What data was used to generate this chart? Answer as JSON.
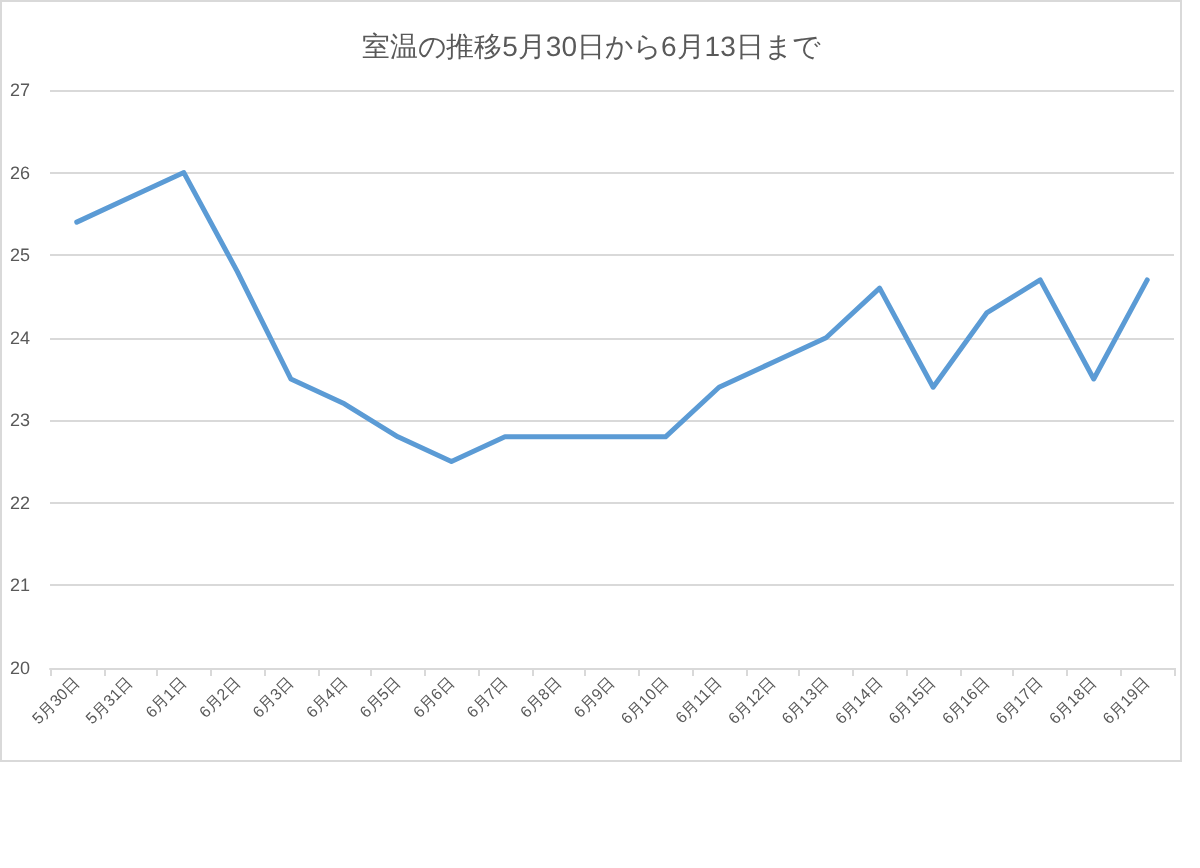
{
  "chart_data": {
    "type": "line",
    "title": "室温の推移5月30日から6月13日まで",
    "categories": [
      "5月30日",
      "5月31日",
      "6月1日",
      "6月2日",
      "6月3日",
      "6月4日",
      "6月5日",
      "6月6日",
      "6月7日",
      "6月8日",
      "6月9日",
      "6月10日",
      "6月11日",
      "6月12日",
      "6月13日",
      "6月14日",
      "6月15日",
      "6月16日",
      "6月17日",
      "6月18日",
      "6月19日"
    ],
    "series": [
      {
        "color": "#5b9bd5",
        "values": [
          25.4,
          25.7,
          26.0,
          24.8,
          23.5,
          23.2,
          22.8,
          22.5,
          22.8,
          22.8,
          22.8,
          22.8,
          23.4,
          23.7,
          24.0,
          24.6,
          23.4,
          24.3,
          24.7,
          23.5,
          24.7
        ]
      }
    ],
    "ylim": [
      20,
      27
    ],
    "yticks": [
      20,
      21,
      22,
      23,
      24,
      25,
      26,
      27
    ],
    "grid": "y",
    "marker": "none",
    "line_style": "solid"
  }
}
